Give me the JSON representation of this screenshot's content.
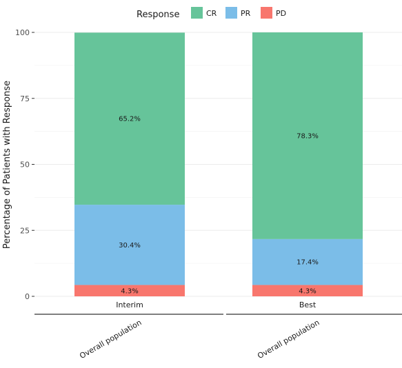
{
  "chart_data": {
    "type": "bar",
    "stacked": true,
    "legend_title": "Response",
    "legend_position": "top",
    "ylabel": "Percentage of Patients with Response",
    "ylim": [
      0,
      100
    ],
    "yticks": [
      0,
      25,
      50,
      75,
      100
    ],
    "grid": true,
    "categories": [
      "Overall population",
      "Overall population"
    ],
    "facets": [
      "Interim",
      "Best"
    ],
    "series": [
      {
        "name": "CR",
        "color": "#66c49a",
        "values": [
          65.2,
          78.3
        ],
        "labels": [
          "65.2%",
          "78.3%"
        ]
      },
      {
        "name": "PR",
        "color": "#7bbde8",
        "values": [
          30.4,
          17.4
        ],
        "labels": [
          "30.4%",
          "17.4%"
        ]
      },
      {
        "name": "PD",
        "color": "#f8766d",
        "values": [
          4.3,
          4.3
        ],
        "labels": [
          "4.3%",
          "4.3%"
        ]
      }
    ]
  }
}
